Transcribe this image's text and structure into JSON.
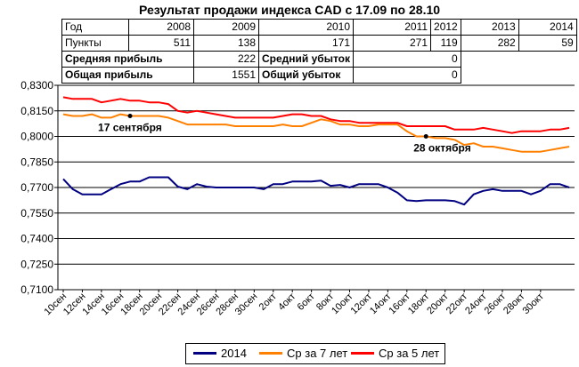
{
  "title": "Результат продажи индекса CAD с 17.09 по 28.10",
  "stats_table": {
    "header_label": "Год",
    "years": [
      "2008",
      "2009",
      "2010",
      "2011",
      "2012",
      "2013",
      "2014"
    ],
    "points_label": "Пункты",
    "points": [
      "511",
      "138",
      "171",
      "271",
      "119",
      "282",
      "59"
    ],
    "avg_profit_label": "Средняя прибыль",
    "avg_profit": "222",
    "avg_loss_label": "Средний убыток",
    "avg_loss": "0",
    "total_profit_label": "Общая прибыль",
    "total_profit": "1551",
    "total_loss_label": "Общий убыток",
    "total_loss": "0"
  },
  "chart_data": {
    "type": "line",
    "title": "Результат продажи индекса CAD с 17.09 по 28.10",
    "ylim": [
      0.71,
      0.83
    ],
    "y_ticks": [
      "0,7100",
      "0,7250",
      "0,7400",
      "0,7550",
      "0,7700",
      "0,7850",
      "0,8000",
      "0,8150",
      "0,8300"
    ],
    "x_tick_labels": [
      "10сен",
      "12сен",
      "14сен",
      "16сен",
      "18сен",
      "20сен",
      "22сен",
      "24сен",
      "26сен",
      "28сен",
      "30сен",
      "2окт",
      "4окт",
      "6окт",
      "8окт",
      "10окт",
      "12окт",
      "14окт",
      "16окт",
      "18окт",
      "20окт",
      "22окт",
      "24окт",
      "26окт",
      "28окт",
      "30окт"
    ],
    "grid": "horizontal",
    "legend_position": "bottom",
    "annotations": [
      {
        "text": "17 сентября",
        "x_index": 7,
        "series": 1
      },
      {
        "text": "28 октября",
        "x_index": 38,
        "series": 1
      }
    ],
    "series": [
      {
        "name": "2014",
        "color": "#000080",
        "values": [
          0.775,
          0.769,
          0.766,
          0.766,
          0.766,
          0.769,
          0.772,
          0.7735,
          0.7735,
          0.776,
          0.776,
          0.776,
          0.7705,
          0.769,
          0.772,
          0.7705,
          0.77,
          0.77,
          0.77,
          0.77,
          0.77,
          0.769,
          0.772,
          0.772,
          0.7735,
          0.7735,
          0.7735,
          0.774,
          0.771,
          0.7715,
          0.77,
          0.772,
          0.772,
          0.772,
          0.77,
          0.767,
          0.7625,
          0.762,
          0.7625,
          0.7625,
          0.7625,
          0.762,
          0.76,
          0.766,
          0.768,
          0.769,
          0.768,
          0.768,
          0.768,
          0.766,
          0.768,
          0.772,
          0.772,
          0.77
        ]
      },
      {
        "name": "Ср за 7 лет",
        "color": "#FF8000",
        "values": [
          0.813,
          0.812,
          0.812,
          0.813,
          0.811,
          0.811,
          0.813,
          0.812,
          0.812,
          0.812,
          0.812,
          0.811,
          0.809,
          0.807,
          0.807,
          0.807,
          0.807,
          0.807,
          0.806,
          0.806,
          0.806,
          0.806,
          0.806,
          0.807,
          0.806,
          0.806,
          0.808,
          0.81,
          0.809,
          0.807,
          0.807,
          0.806,
          0.806,
          0.807,
          0.807,
          0.807,
          0.803,
          0.8,
          0.8,
          0.799,
          0.799,
          0.798,
          0.795,
          0.796,
          0.794,
          0.794,
          0.793,
          0.792,
          0.791,
          0.791,
          0.791,
          0.792,
          0.793,
          0.794
        ]
      },
      {
        "name": "Ср за 5 лет",
        "color": "#FF0000",
        "values": [
          0.823,
          0.822,
          0.822,
          0.822,
          0.82,
          0.821,
          0.822,
          0.821,
          0.821,
          0.82,
          0.82,
          0.819,
          0.815,
          0.814,
          0.815,
          0.814,
          0.813,
          0.812,
          0.811,
          0.811,
          0.811,
          0.811,
          0.811,
          0.812,
          0.813,
          0.813,
          0.812,
          0.812,
          0.81,
          0.809,
          0.809,
          0.808,
          0.808,
          0.808,
          0.808,
          0.808,
          0.806,
          0.806,
          0.806,
          0.806,
          0.806,
          0.804,
          0.804,
          0.804,
          0.805,
          0.804,
          0.803,
          0.802,
          0.803,
          0.803,
          0.803,
          0.804,
          0.804,
          0.805
        ]
      }
    ]
  }
}
